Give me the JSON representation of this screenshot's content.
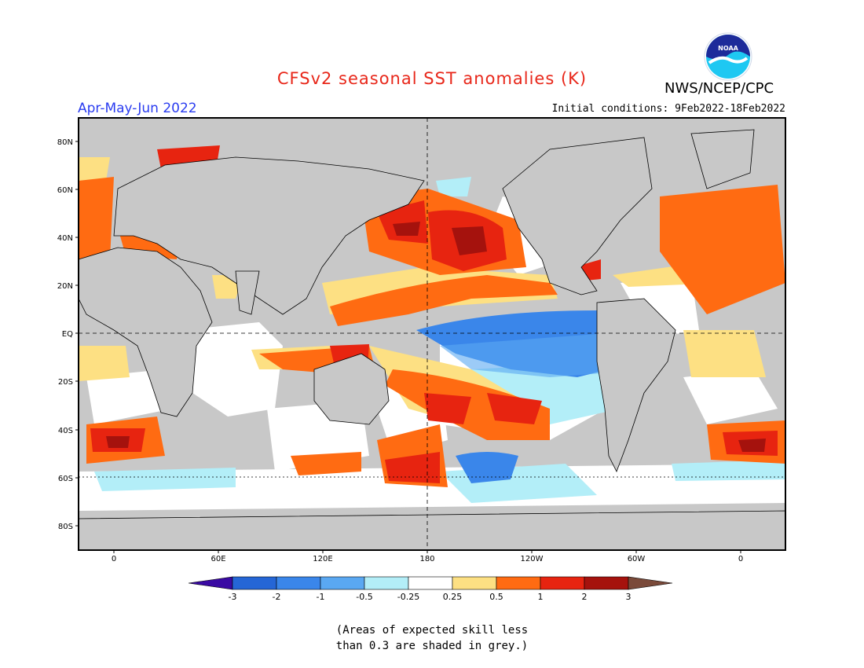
{
  "header": {
    "title": "CFSv2 seasonal SST anomalies (K)",
    "agency": "NWS/NCEP/CPC",
    "logo_text": "NOAA",
    "season": "Apr-May-Jun 2022",
    "initial_conditions": "Initial conditions: 9Feb2022-18Feb2022"
  },
  "map": {
    "lat_labels": [
      "80N",
      "60N",
      "40N",
      "20N",
      "EQ",
      "20S",
      "40S",
      "60S",
      "80S"
    ],
    "lon_labels": [
      "0",
      "60E",
      "120E",
      "180",
      "120W",
      "60W",
      "0"
    ],
    "land_color": "#c8c8c8",
    "ocean_neutral_color": "#ffffff"
  },
  "colorbar": {
    "labels": [
      "-3",
      "-2",
      "-1",
      "-0.5",
      "-0.25",
      "0.25",
      "0.5",
      "1",
      "2",
      "3"
    ],
    "colors": [
      "#3a0aa3",
      "#2566d6",
      "#3a86ea",
      "#5aa8f2",
      "#b3eef8",
      "#ffffff",
      "#fde083",
      "#ff6b12",
      "#e72410",
      "#a5120d",
      "#7a4a3a"
    ]
  },
  "footnote": {
    "line1": "(Areas of expected skill less",
    "line2": "than 0.3 are shaded in grey.)"
  }
}
